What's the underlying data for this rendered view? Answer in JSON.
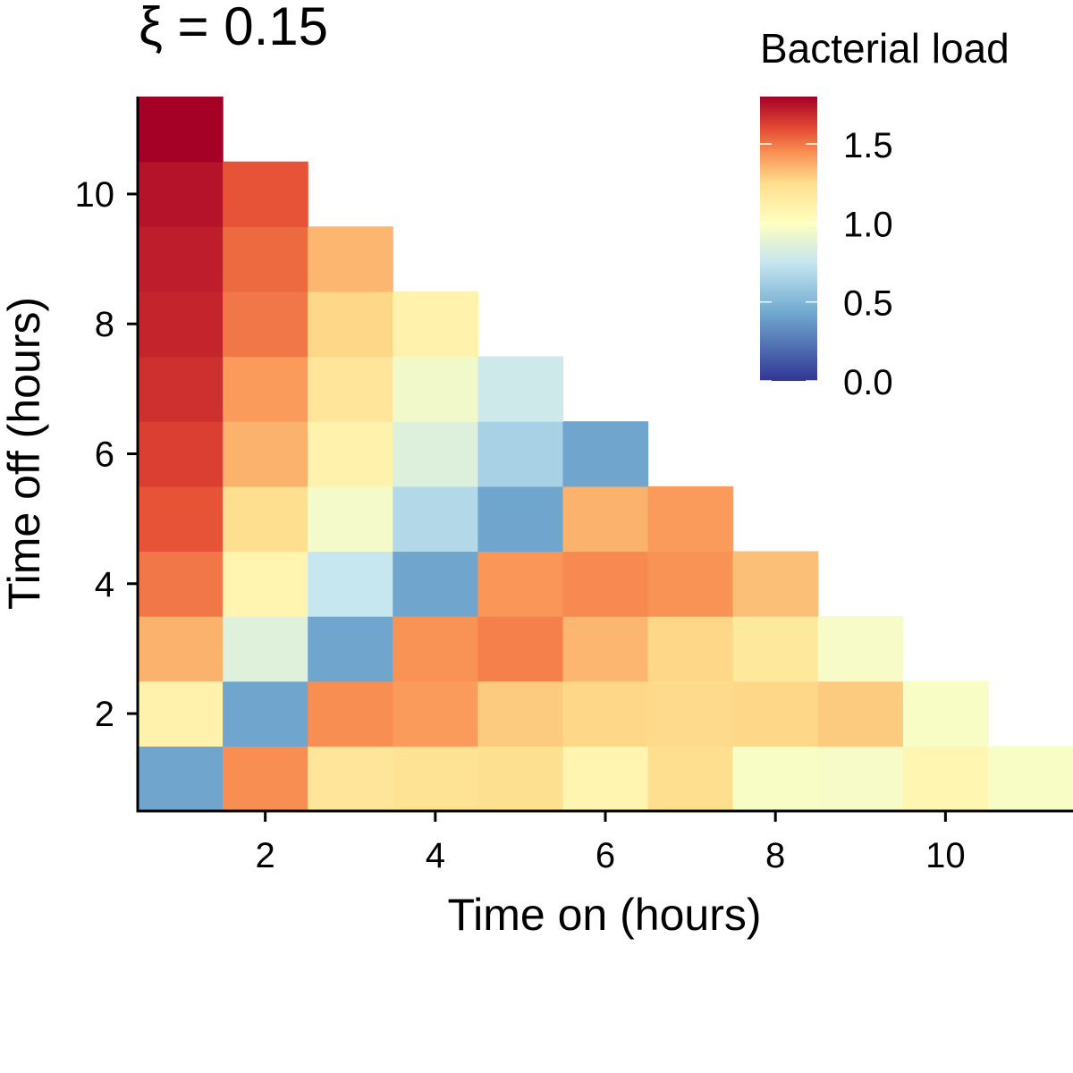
{
  "chart_data": {
    "type": "heatmap",
    "title": "ξ = 0.15",
    "xlabel": "Time on (hours)",
    "ylabel": "Time off (hours)",
    "xlim": [
      0.5,
      11.5
    ],
    "ylim": [
      0.5,
      11.5
    ],
    "x_ticks": [
      2,
      4,
      6,
      8,
      10
    ],
    "y_ticks": [
      2,
      4,
      6,
      8,
      10
    ],
    "grid": false,
    "legend": {
      "title": "Bacterial load",
      "position": "top-right",
      "min": 0.0,
      "max": 1.8,
      "ticks": [
        0.0,
        0.5,
        1.0,
        1.5
      ],
      "tick_labels": [
        "0.0",
        "0.5",
        "1.0",
        "1.5"
      ],
      "colormap": "RdYlBu (reversed)",
      "midpoint": 1.0
    },
    "cells": [
      {
        "on": 1,
        "off": 1,
        "value": 0.42
      },
      {
        "on": 2,
        "off": 1,
        "value": 1.45
      },
      {
        "on": 3,
        "off": 1,
        "value": 1.2
      },
      {
        "on": 4,
        "off": 1,
        "value": 1.22
      },
      {
        "on": 5,
        "off": 1,
        "value": 1.24
      },
      {
        "on": 6,
        "off": 1,
        "value": 1.08
      },
      {
        "on": 7,
        "off": 1,
        "value": 1.25
      },
      {
        "on": 8,
        "off": 1,
        "value": 0.97
      },
      {
        "on": 9,
        "off": 1,
        "value": 0.96
      },
      {
        "on": 10,
        "off": 1,
        "value": 1.07
      },
      {
        "on": 11,
        "off": 1,
        "value": 0.97
      },
      {
        "on": 1,
        "off": 2,
        "value": 1.1
      },
      {
        "on": 2,
        "off": 2,
        "value": 0.42
      },
      {
        "on": 3,
        "off": 2,
        "value": 1.45
      },
      {
        "on": 4,
        "off": 2,
        "value": 1.42
      },
      {
        "on": 5,
        "off": 2,
        "value": 1.3
      },
      {
        "on": 6,
        "off": 2,
        "value": 1.27
      },
      {
        "on": 7,
        "off": 2,
        "value": 1.26
      },
      {
        "on": 8,
        "off": 2,
        "value": 1.27
      },
      {
        "on": 9,
        "off": 2,
        "value": 1.3
      },
      {
        "on": 10,
        "off": 2,
        "value": 0.97
      },
      {
        "on": 1,
        "off": 3,
        "value": 1.36
      },
      {
        "on": 2,
        "off": 3,
        "value": 0.86
      },
      {
        "on": 3,
        "off": 3,
        "value": 0.42
      },
      {
        "on": 4,
        "off": 3,
        "value": 1.44
      },
      {
        "on": 5,
        "off": 3,
        "value": 1.48
      },
      {
        "on": 6,
        "off": 3,
        "value": 1.35
      },
      {
        "on": 7,
        "off": 3,
        "value": 1.27
      },
      {
        "on": 8,
        "off": 3,
        "value": 1.18
      },
      {
        "on": 9,
        "off": 3,
        "value": 0.96
      },
      {
        "on": 1,
        "off": 4,
        "value": 1.5
      },
      {
        "on": 2,
        "off": 4,
        "value": 1.08
      },
      {
        "on": 3,
        "off": 4,
        "value": 0.75
      },
      {
        "on": 4,
        "off": 4,
        "value": 0.42
      },
      {
        "on": 5,
        "off": 4,
        "value": 1.43
      },
      {
        "on": 6,
        "off": 4,
        "value": 1.46
      },
      {
        "on": 7,
        "off": 4,
        "value": 1.44
      },
      {
        "on": 8,
        "off": 4,
        "value": 1.33
      },
      {
        "on": 1,
        "off": 5,
        "value": 1.58
      },
      {
        "on": 2,
        "off": 5,
        "value": 1.25
      },
      {
        "on": 3,
        "off": 5,
        "value": 0.95
      },
      {
        "on": 4,
        "off": 5,
        "value": 0.68
      },
      {
        "on": 5,
        "off": 5,
        "value": 0.42
      },
      {
        "on": 6,
        "off": 5,
        "value": 1.36
      },
      {
        "on": 7,
        "off": 5,
        "value": 1.42
      },
      {
        "on": 1,
        "off": 6,
        "value": 1.63
      },
      {
        "on": 2,
        "off": 6,
        "value": 1.36
      },
      {
        "on": 3,
        "off": 6,
        "value": 1.1
      },
      {
        "on": 4,
        "off": 6,
        "value": 0.85
      },
      {
        "on": 5,
        "off": 6,
        "value": 0.64
      },
      {
        "on": 6,
        "off": 6,
        "value": 0.42
      },
      {
        "on": 1,
        "off": 7,
        "value": 1.67
      },
      {
        "on": 2,
        "off": 7,
        "value": 1.42
      },
      {
        "on": 3,
        "off": 7,
        "value": 1.2
      },
      {
        "on": 4,
        "off": 7,
        "value": 0.94
      },
      {
        "on": 5,
        "off": 7,
        "value": 0.78
      },
      {
        "on": 1,
        "off": 8,
        "value": 1.7
      },
      {
        "on": 2,
        "off": 8,
        "value": 1.5
      },
      {
        "on": 3,
        "off": 8,
        "value": 1.27
      },
      {
        "on": 4,
        "off": 8,
        "value": 1.1
      },
      {
        "on": 1,
        "off": 9,
        "value": 1.72
      },
      {
        "on": 2,
        "off": 9,
        "value": 1.53
      },
      {
        "on": 3,
        "off": 9,
        "value": 1.35
      },
      {
        "on": 1,
        "off": 10,
        "value": 1.75
      },
      {
        "on": 2,
        "off": 10,
        "value": 1.58
      },
      {
        "on": 1,
        "off": 11,
        "value": 1.8
      }
    ]
  },
  "colors": {
    "scale_stops": [
      {
        "value": 0.0,
        "color": "#313695"
      },
      {
        "value": 0.45,
        "color": "#74add1"
      },
      {
        "value": 0.75,
        "color": "#c6e6f0"
      },
      {
        "value": 1.0,
        "color": "#ffffbf"
      },
      {
        "value": 1.25,
        "color": "#fedf8f"
      },
      {
        "value": 1.45,
        "color": "#f98e52"
      },
      {
        "value": 1.6,
        "color": "#e34a33"
      },
      {
        "value": 1.8,
        "color": "#a50026"
      }
    ],
    "axis": "#000000",
    "background": "#ffffff"
  }
}
